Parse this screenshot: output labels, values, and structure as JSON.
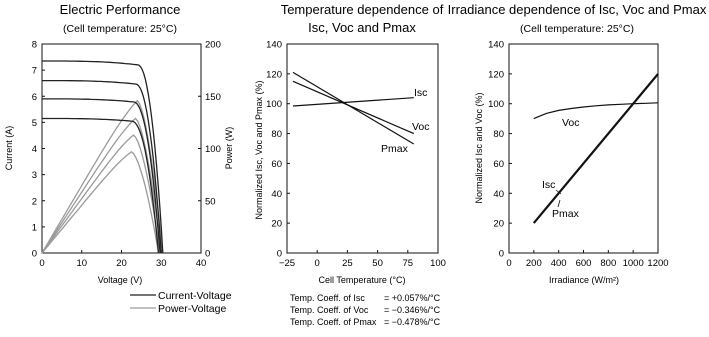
{
  "legend": {
    "current_voltage": "Current-Voltage",
    "power_voltage": "Power-Voltage",
    "colors": {
      "current_voltage": "#222222",
      "power_voltage": "#9a9a9a"
    }
  },
  "temp_coefficients": [
    {
      "label": "Temp. Coeff. of Isc",
      "value": "= +0.057%/°C"
    },
    {
      "label": "Temp. Coeff. of Voc",
      "value": "= −0.346%/°C"
    },
    {
      "label": "Temp. Coeff. of Pmax",
      "value": "= −0.478%/°C"
    }
  ],
  "chart_data": [
    {
      "type": "line",
      "title": "Electric Performance",
      "subtitle": "(Cell temperature: 25°C)",
      "xlabel": "Voltage (V)",
      "ylabel": "Current (A)",
      "ylabel_right": "Power (W)",
      "xlim": [
        0,
        40
      ],
      "ylim": [
        0,
        8
      ],
      "ylim_right": [
        0,
        200
      ],
      "x_ticks": [
        "0",
        "10",
        "20",
        "30",
        "40"
      ],
      "y_ticks": [
        "0",
        "1",
        "2",
        "3",
        "4",
        "5",
        "6",
        "7",
        "8"
      ],
      "y_ticks_right": [
        "0",
        "50",
        "100",
        "150",
        "200"
      ],
      "series_iv": [
        {
          "isc": 7.35,
          "voc": 30.4,
          "vk": 24.0
        },
        {
          "isc": 6.6,
          "voc": 30.0,
          "vk": 23.5
        },
        {
          "isc": 5.9,
          "voc": 29.7,
          "vk": 23.0
        },
        {
          "isc": 5.15,
          "voc": 29.3,
          "vk": 22.5
        }
      ],
      "series_pv": [
        {
          "vmp": 24.0,
          "pmp": 155,
          "voc": 30.4
        },
        {
          "vmp": 23.5,
          "pmp": 137,
          "voc": 30.0
        },
        {
          "vmp": 23.0,
          "pmp": 120,
          "voc": 29.7
        },
        {
          "vmp": 22.5,
          "pmp": 103,
          "voc": 29.3
        }
      ]
    },
    {
      "type": "line",
      "title": "Temperature dependence of",
      "title2": "Isc, Voc and Pmax",
      "xlabel": "Cell Temperature (°C)",
      "ylabel": "Normalized Isc, Voc and Pmax (%)",
      "xlim": [
        -25,
        100
      ],
      "ylim": [
        0,
        140
      ],
      "x_ticks": [
        "−25",
        "0",
        "25",
        "50",
        "75",
        "100"
      ],
      "y_ticks": [
        "0",
        "20",
        "40",
        "60",
        "80",
        "100",
        "120",
        "140"
      ],
      "series": [
        {
          "name": "Isc",
          "x": [
            -20,
            80
          ],
          "y": [
            98.5,
            104
          ]
        },
        {
          "name": "Voc",
          "x": [
            -20,
            80
          ],
          "y": [
            115,
            80
          ]
        },
        {
          "name": "Pmax",
          "x": [
            -20,
            80
          ],
          "y": [
            121,
            73
          ]
        }
      ]
    },
    {
      "type": "line",
      "title": "Irradiance dependence of Isc, Voc and Pmax",
      "subtitle": "(Cell temperature: 25°C)",
      "xlabel": "Irradiance (W/m²)",
      "ylabel": "Normalized Isc and Voc (%)",
      "xlim": [
        0,
        1200
      ],
      "ylim": [
        0,
        140
      ],
      "x_ticks": [
        "0",
        "200",
        "400",
        "600",
        "800",
        "1000",
        "1200"
      ],
      "y_ticks": [
        "0",
        "20",
        "40",
        "60",
        "80",
        "100",
        "120",
        "140"
      ],
      "series": [
        {
          "name": "Voc",
          "x": [
            200,
            300,
            400,
            500,
            600,
            700,
            800,
            900,
            1000,
            1100,
            1200
          ],
          "y": [
            90,
            93.5,
            95.5,
            96.8,
            97.8,
            98.6,
            99.2,
            99.6,
            100,
            100.3,
            100.6
          ]
        },
        {
          "name": "Isc",
          "x": [
            200,
            1200
          ],
          "y": [
            20,
            120
          ]
        },
        {
          "name": "Pmax",
          "x": [
            200,
            1200
          ],
          "y": [
            20,
            120
          ]
        }
      ]
    }
  ]
}
